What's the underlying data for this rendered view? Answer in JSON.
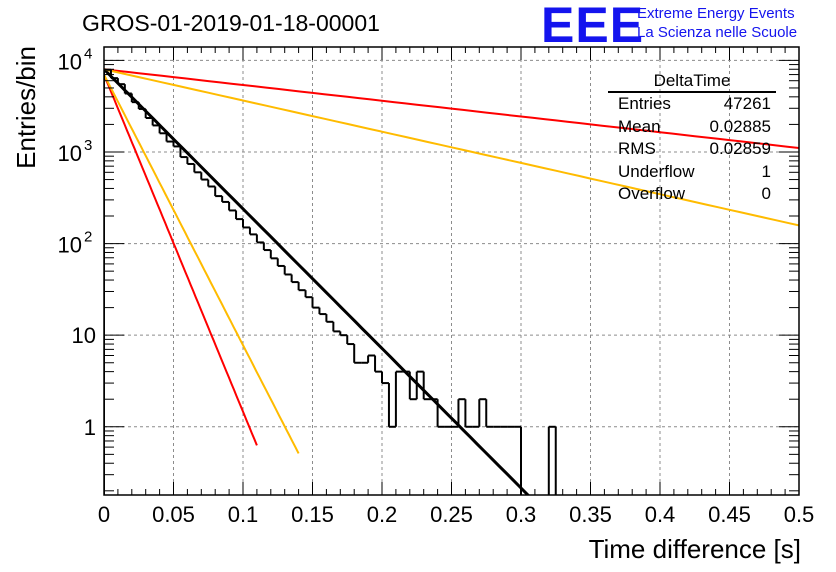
{
  "title": "GROS-01-2019-01-18-00001",
  "logo": {
    "text": "EEE",
    "line1": "Extreme Energy Events",
    "line2": "La Scienza nelle Scuole",
    "color": "#1414ee"
  },
  "stats": {
    "title": "DeltaTime",
    "rows": [
      {
        "label": "Entries",
        "value": "47261"
      },
      {
        "label": "Mean",
        "value": "0.02885"
      },
      {
        "label": "RMS",
        "value": "0.02859"
      },
      {
        "label": "Underflow",
        "value": "1"
      },
      {
        "label": "Overflow",
        "value": "0"
      }
    ]
  },
  "chart_data": {
    "type": "histogram",
    "title": "GROS-01-2019-01-18-00001",
    "xlabel": "Time difference [s]",
    "ylabel": "Entries/bin",
    "xlim": [
      0,
      0.5
    ],
    "ylim": [
      0.18,
      14000
    ],
    "yscale": "log",
    "grid": true,
    "bin_width": 0.005,
    "xticks": [
      {
        "v": 0,
        "label": "0"
      },
      {
        "v": 0.05,
        "label": "0.05"
      },
      {
        "v": 0.1,
        "label": "0.1"
      },
      {
        "v": 0.15,
        "label": "0.15"
      },
      {
        "v": 0.2,
        "label": "0.2"
      },
      {
        "v": 0.25,
        "label": "0.25"
      },
      {
        "v": 0.3,
        "label": "0.3"
      },
      {
        "v": 0.35,
        "label": "0.35"
      },
      {
        "v": 0.4,
        "label": "0.4"
      },
      {
        "v": 0.45,
        "label": "0.45"
      },
      {
        "v": 0.5,
        "label": "0.5"
      }
    ],
    "yticks": [
      {
        "v": 1,
        "label": "1"
      },
      {
        "v": 10,
        "label": "10"
      },
      {
        "v": 100,
        "base": "10",
        "exp": "2"
      },
      {
        "v": 1000,
        "base": "10",
        "exp": "3"
      },
      {
        "v": 10000,
        "base": "10",
        "exp": "4"
      }
    ],
    "histogram": [
      [
        0.0,
        7900
      ],
      [
        0.005,
        6400
      ],
      [
        0.01,
        5500
      ],
      [
        0.015,
        4350
      ],
      [
        0.02,
        3500
      ],
      [
        0.025,
        2950
      ],
      [
        0.03,
        2350
      ],
      [
        0.035,
        1950
      ],
      [
        0.04,
        1600
      ],
      [
        0.045,
        1300
      ],
      [
        0.05,
        1150
      ],
      [
        0.055,
        880
      ],
      [
        0.06,
        740
      ],
      [
        0.065,
        600
      ],
      [
        0.07,
        500
      ],
      [
        0.075,
        420
      ],
      [
        0.08,
        330
      ],
      [
        0.085,
        285
      ],
      [
        0.09,
        230
      ],
      [
        0.095,
        185
      ],
      [
        0.1,
        150
      ],
      [
        0.105,
        126
      ],
      [
        0.11,
        103
      ],
      [
        0.115,
        85
      ],
      [
        0.12,
        69
      ],
      [
        0.125,
        57
      ],
      [
        0.13,
        46
      ],
      [
        0.135,
        38
      ],
      [
        0.14,
        31
      ],
      [
        0.145,
        26
      ],
      [
        0.15,
        20
      ],
      [
        0.155,
        17
      ],
      [
        0.16,
        14
      ],
      [
        0.165,
        11
      ],
      [
        0.17,
        10
      ],
      [
        0.175,
        8
      ],
      [
        0.18,
        5
      ],
      [
        0.185,
        5
      ],
      [
        0.19,
        6
      ],
      [
        0.195,
        4
      ],
      [
        0.2,
        3
      ],
      [
        0.205,
        1
      ],
      [
        0.21,
        4
      ],
      [
        0.215,
        4
      ],
      [
        0.22,
        2
      ],
      [
        0.225,
        4
      ],
      [
        0.23,
        2
      ],
      [
        0.235,
        2
      ],
      [
        0.24,
        1
      ],
      [
        0.245,
        1
      ],
      [
        0.25,
        1
      ],
      [
        0.255,
        2
      ],
      [
        0.26,
        1
      ],
      [
        0.265,
        1
      ],
      [
        0.27,
        2
      ],
      [
        0.275,
        1
      ],
      [
        0.28,
        1
      ],
      [
        0.285,
        1
      ],
      [
        0.29,
        1
      ],
      [
        0.295,
        1
      ],
      [
        0.3,
        0
      ],
      [
        0.305,
        0
      ],
      [
        0.31,
        0
      ],
      [
        0.315,
        0
      ],
      [
        0.32,
        1
      ]
    ],
    "fit_lines": [
      {
        "color": "#000000",
        "x0": 0.0,
        "y0": 8000,
        "tau": 0.0285,
        "x1": 0.31
      },
      {
        "color": "#ff0000",
        "x0": 0.0,
        "y0": 7000,
        "tau": 0.0118,
        "x1": 0.11
      },
      {
        "color": "#ffbb00",
        "x0": 0.0,
        "y0": 7000,
        "tau": 0.0147,
        "x1": 0.14
      },
      {
        "color": "#ff0000",
        "x0": 0.0,
        "y0": 8000,
        "tau": 0.2527,
        "x1": 0.5
      },
      {
        "color": "#ffbb00",
        "x0": 0.0,
        "y0": 8000,
        "tau": 0.1274,
        "x1": 0.5
      }
    ]
  }
}
